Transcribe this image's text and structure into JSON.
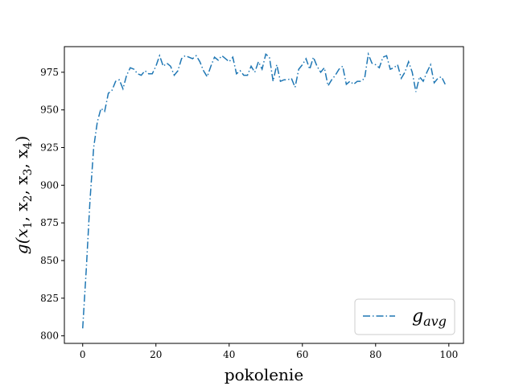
{
  "chart_data": {
    "type": "line",
    "title": "",
    "xlabel": "pokolenie",
    "ylabel": "g(x1, x2, x3, x4)",
    "ylabel_parts": {
      "base": "g(x",
      "sub1": "1",
      "sep1": ", x",
      "sub2": "2",
      "sep2": ", x",
      "sub3": "3",
      "sep3": ", x",
      "sub4": "4",
      "close": ")"
    },
    "xlim": [
      -5,
      104
    ],
    "ylim": [
      795,
      992
    ],
    "xticks": [
      0,
      20,
      40,
      60,
      80,
      100
    ],
    "yticks": [
      800,
      825,
      850,
      875,
      900,
      925,
      950,
      975
    ],
    "grid": false,
    "legend_position": "lower right",
    "colors": {
      "series": "#1f77b4"
    },
    "series": [
      {
        "name": "g_avg",
        "legend_base": "g",
        "legend_sub": "avg",
        "linestyle": "dashdot",
        "x": [
          0,
          1,
          2,
          3,
          4,
          5,
          6,
          7,
          8,
          9,
          10,
          11,
          12,
          13,
          14,
          15,
          16,
          17,
          18,
          19,
          20,
          21,
          22,
          23,
          24,
          25,
          26,
          27,
          28,
          29,
          30,
          31,
          32,
          33,
          34,
          35,
          36,
          37,
          38,
          39,
          40,
          41,
          42,
          43,
          44,
          45,
          46,
          47,
          48,
          49,
          50,
          51,
          52,
          53,
          54,
          55,
          56,
          57,
          58,
          59,
          60,
          61,
          62,
          63,
          64,
          65,
          66,
          67,
          68,
          69,
          70,
          71,
          72,
          73,
          74,
          75,
          76,
          77,
          78,
          79,
          80,
          81,
          82,
          83,
          84,
          85,
          86,
          87,
          88,
          89,
          90,
          91,
          92,
          93,
          94,
          95,
          96,
          97,
          98,
          99
        ],
        "values": [
          805,
          845,
          890,
          925,
          942,
          951,
          949,
          961,
          963,
          969,
          970,
          964,
          973,
          978,
          977,
          974,
          973,
          976,
          974,
          974,
          979,
          986,
          979,
          981,
          979,
          973,
          976,
          984,
          986,
          985,
          984,
          986,
          982,
          976,
          972,
          979,
          985,
          983,
          986,
          984,
          982,
          985,
          974,
          976,
          973,
          973,
          979,
          975,
          982,
          977,
          987,
          985,
          969,
          980,
          969,
          970,
          970,
          971,
          965,
          977,
          980,
          984,
          977,
          985,
          979,
          975,
          978,
          966,
          970,
          973,
          977,
          979,
          967,
          969,
          967,
          969,
          969,
          971,
          987,
          981,
          980,
          978,
          985,
          986,
          977,
          978,
          980,
          971,
          975,
          982,
          975,
          962,
          972,
          969,
          975,
          980,
          968,
          971,
          972,
          967
        ]
      }
    ]
  }
}
